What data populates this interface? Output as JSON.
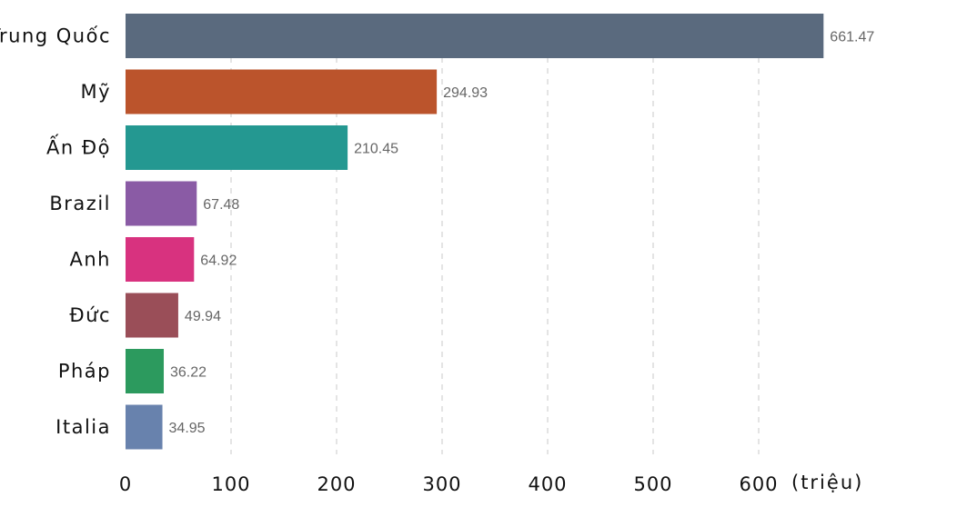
{
  "chart_data": {
    "type": "bar",
    "orientation": "horizontal",
    "title": "",
    "xlabel": "",
    "ylabel": "",
    "unit": "(triệu)",
    "xlim": [
      0,
      700
    ],
    "ticks": [
      0,
      100,
      200,
      300,
      400,
      500,
      600
    ],
    "tick_labels": [
      "0",
      "100",
      "200",
      "300",
      "400",
      "500",
      "600"
    ],
    "grid": "vertical dashed",
    "categories": [
      "Trung Quốc",
      "Mỹ",
      "Ấn Độ",
      "Brazil",
      "Anh",
      "Đức",
      "Pháp",
      "Italia"
    ],
    "values": [
      661.47,
      294.93,
      210.45,
      67.48,
      64.92,
      49.94,
      36.22,
      34.95
    ],
    "value_labels": [
      "661.47",
      "294.93",
      "210.45",
      "67.48",
      "64.92",
      "49.94",
      "36.22",
      "34.95"
    ],
    "colors": [
      "#5a6a7e",
      "#bb542c",
      "#249891",
      "#8a5ba5",
      "#d8327f",
      "#9a4e58",
      "#2c9a5e",
      "#6882ad"
    ]
  }
}
